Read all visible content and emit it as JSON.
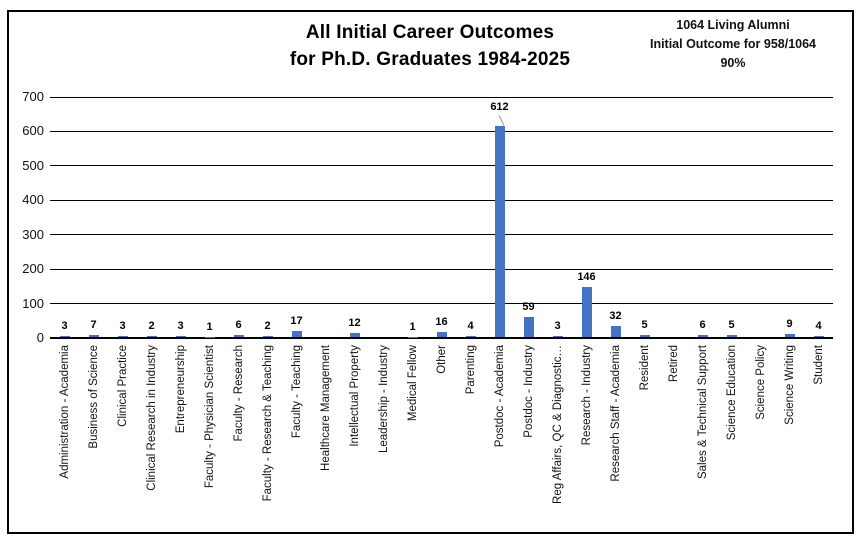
{
  "title": {
    "line1": "All Initial Career Outcomes",
    "line2": "for Ph.D. Graduates 1984-2025"
  },
  "annotation": {
    "line1": "1064 Living Alumni",
    "line2": "Initial Outcome for 958/1064",
    "line3": "90%"
  },
  "chart_data": {
    "type": "bar",
    "title": "All Initial Career Outcomes for Ph.D. Graduates 1984-2025",
    "categories": [
      "Administration - Academia",
      "Business of Science",
      "Clinical Practice",
      "Clinical Research in Industry",
      "Entrepreneurship",
      "Faculty - Physician Scientist",
      "Faculty - Research",
      "Faculty - Research & Teaching",
      "Faculty - Teaching",
      "Healthcare Management",
      "Intellectual Property",
      "Leadership - Industry",
      "Medical Fellow",
      "Other",
      "Parenting",
      "Postdoc - Academia",
      "Postdoc - Industry",
      "Reg Affairs, QC & Diagnostic…",
      "Research - Industry",
      "Research Staff - Academia",
      "Resident",
      "Retired",
      "Sales & Technical Support",
      "Science Education",
      "Science Policy",
      "Science Writing",
      "Student"
    ],
    "values": [
      3,
      7,
      3,
      2,
      3,
      1,
      6,
      2,
      17,
      null,
      12,
      null,
      1,
      16,
      4,
      612,
      59,
      3,
      146,
      32,
      5,
      null,
      6,
      5,
      null,
      9,
      4
    ],
    "xlabel": "",
    "ylabel": "",
    "ylim": [
      0,
      700
    ],
    "yticks": [
      0,
      100,
      200,
      300,
      400,
      500,
      600,
      700
    ],
    "grid": true,
    "legend": false,
    "bar_color": "#4472C4",
    "annotation": "1064 Living Alumni — Initial Outcome for 958/1064 — 90%"
  },
  "colors": {
    "bar": "#4472C4",
    "gridline": "#000000",
    "text": "#000000",
    "background": "#ffffff"
  }
}
